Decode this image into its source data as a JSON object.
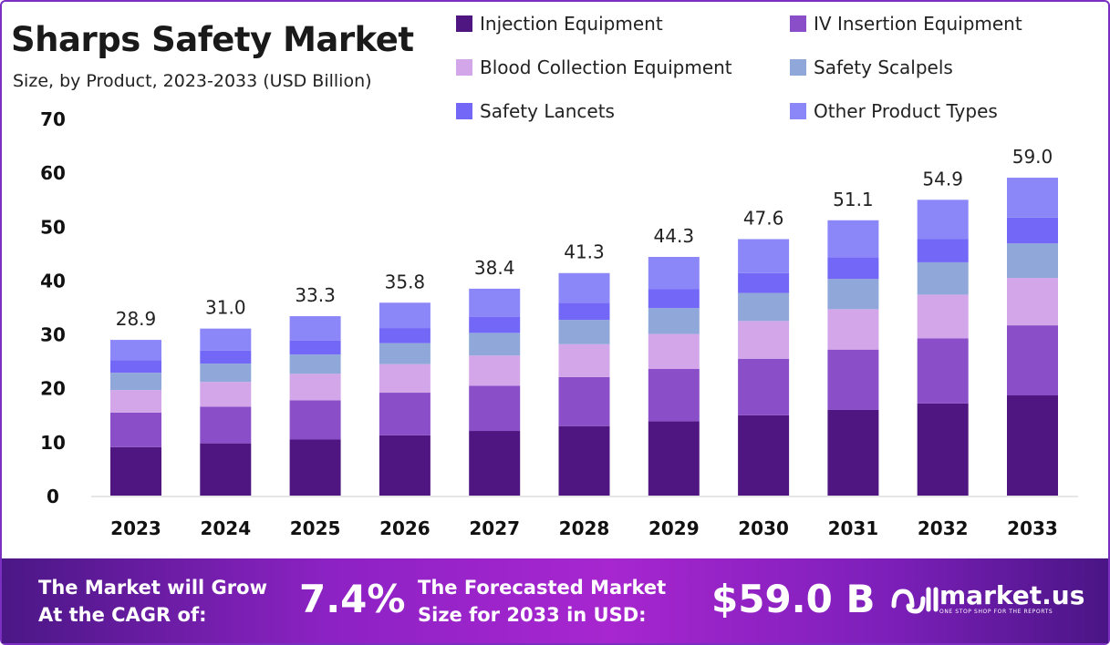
{
  "header": {
    "title": "Sharps Safety Market",
    "subtitle": "Size, by Product, 2023-2033 (USD Billion)"
  },
  "chart_data": {
    "type": "bar",
    "stacked": true,
    "title": "Sharps Safety Market",
    "subtitle": "Size, by Product, 2023-2033 (USD Billion)",
    "categories": [
      "2023",
      "2024",
      "2025",
      "2026",
      "2027",
      "2028",
      "2029",
      "2030",
      "2031",
      "2032",
      "2033"
    ],
    "ylim": [
      0,
      70
    ],
    "yticks": [
      "0",
      "10",
      "20",
      "30",
      "40",
      "50",
      "60",
      "70"
    ],
    "grid": false,
    "legend_position": "top-right",
    "totals": [
      "28.9",
      "31.0",
      "33.3",
      "35.8",
      "38.4",
      "41.3",
      "44.3",
      "47.6",
      "51.1",
      "54.9",
      "59.0"
    ],
    "series": [
      {
        "name": "Injection Equipment",
        "color": "#4f1681",
        "values": [
          9.0,
          9.7,
          10.4,
          11.2,
          12.0,
          12.9,
          13.8,
          14.9,
          15.9,
          17.1,
          18.6
        ]
      },
      {
        "name": "IV Insertion Equipment",
        "color": "#8a4ec9",
        "values": [
          6.4,
          6.8,
          7.3,
          7.9,
          8.4,
          9.1,
          9.7,
          10.5,
          11.2,
          12.1,
          13.0
        ]
      },
      {
        "name": "Blood Collection Equipment",
        "color": "#d3a6ea",
        "values": [
          4.2,
          4.6,
          4.9,
          5.3,
          5.6,
          6.1,
          6.5,
          7.0,
          7.5,
          8.1,
          8.8
        ]
      },
      {
        "name": "Safety Scalpels",
        "color": "#8fa8d9",
        "values": [
          3.2,
          3.4,
          3.6,
          3.9,
          4.2,
          4.5,
          4.8,
          5.2,
          5.6,
          6.0,
          6.4
        ]
      },
      {
        "name": "Safety Lancets",
        "color": "#7267f6",
        "values": [
          2.3,
          2.4,
          2.6,
          2.8,
          3.0,
          3.2,
          3.5,
          3.7,
          4.0,
          4.3,
          4.8
        ]
      },
      {
        "name": "Other Product Types",
        "color": "#8c87f9",
        "values": [
          3.8,
          4.1,
          4.5,
          4.7,
          5.2,
          5.5,
          6.0,
          6.3,
          6.9,
          7.3,
          7.4
        ]
      }
    ]
  },
  "footer": {
    "cagr_label_1": "The Market will Grow",
    "cagr_label_2": "At the CAGR of:",
    "cagr_value": "7.4%",
    "forecast_label_1": "The Forecasted Market",
    "forecast_label_2": "Size for 2033 in USD:",
    "forecast_value": "$59.0 B",
    "logo_text": "market.us",
    "logo_tagline": "ONE STOP SHOP FOR THE REPORTS"
  }
}
